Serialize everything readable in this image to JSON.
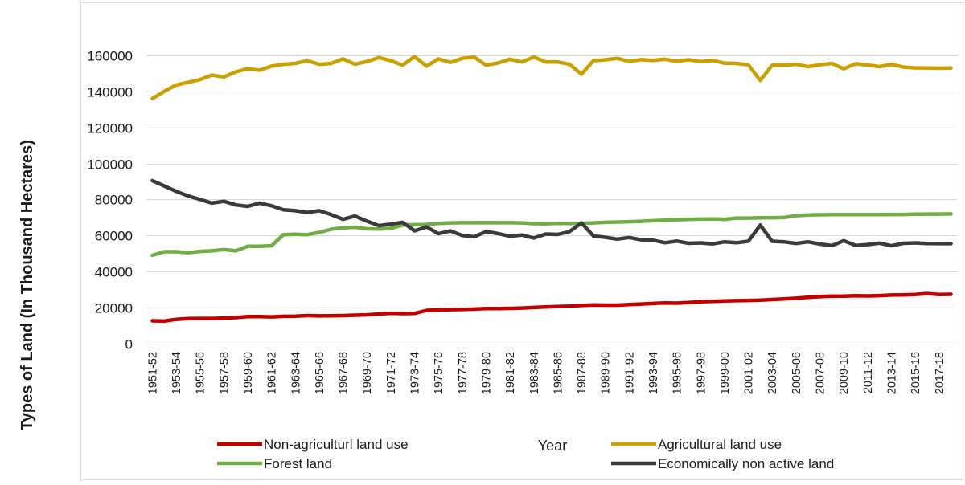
{
  "chart_data": {
    "type": "line",
    "title": "",
    "xlabel": "Year",
    "ylabel": "Types of Land (In Thousand Hectares)",
    "ylim": [
      0,
      180000
    ],
    "yticks": [
      0,
      20000,
      40000,
      60000,
      80000,
      100000,
      120000,
      140000,
      160000
    ],
    "ytick_labels": [
      "0",
      "20000",
      "40000",
      "60000",
      "80000",
      "100000",
      "120000",
      "140000",
      "160000"
    ],
    "grid": "horizontal",
    "legend_position": "bottom",
    "categories": [
      "1951-52",
      "1952-53",
      "1953-54",
      "1954-55",
      "1955-56",
      "1956-57",
      "1957-58",
      "1958-59",
      "1959-60",
      "1960-61",
      "1961-62",
      "1962-63",
      "1963-64",
      "1964-65",
      "1965-66",
      "1966-67",
      "1967-68",
      "1968-69",
      "1969-70",
      "1970-71",
      "1971-72",
      "1972-73",
      "1973-74",
      "1974-75",
      "1975-76",
      "1976-77",
      "1977-78",
      "1978-79",
      "1979-80",
      "1980-81",
      "1981-82",
      "1982-83",
      "1983-84",
      "1984-85",
      "1985-86",
      "1986-87",
      "1987-88",
      "1988-89",
      "1989-90",
      "1990-91",
      "1991-92",
      "1992-93",
      "1993-94",
      "1994-95",
      "1995-96",
      "1996-97",
      "1997-98",
      "1998-99",
      "1999-00",
      "2000-01",
      "2001-02",
      "2002-03",
      "2003-04",
      "2004-05",
      "2005-06",
      "2006-07",
      "2007-08",
      "2008-09",
      "2009-10",
      "2010-11",
      "2011-12",
      "2012-13",
      "2013-14",
      "2014-15",
      "2015-16",
      "2016-17",
      "2017-18",
      "2018-19"
    ],
    "tick_labels": [
      "1951-52",
      "1953-54",
      "1955-56",
      "1957-58",
      "1959-60",
      "1961-62",
      "1963-64",
      "1965-66",
      "1967-68",
      "1969-70",
      "1971-72",
      "1973-74",
      "1975-76",
      "1977-78",
      "1979-80",
      "1981-82",
      "1983-84",
      "1985-86",
      "1987-88",
      "1989-90",
      "1991-92",
      "1993-94",
      "1995-96",
      "1997-98",
      "1999-00",
      "2001-02",
      "2003-04",
      "2005-06",
      "2007-08",
      "2009-10",
      "2011-12",
      "2013-14",
      "2015-16",
      "2017-18"
    ],
    "series": [
      {
        "name": "Non-agriculturl land use",
        "color": "#c00000",
        "values": [
          12700,
          12500,
          13500,
          13900,
          14000,
          14000,
          14200,
          14500,
          15000,
          15000,
          14900,
          15200,
          15300,
          15600,
          15400,
          15500,
          15600,
          15800,
          16000,
          16500,
          16900,
          16700,
          16800,
          18500,
          18700,
          18900,
          19000,
          19200,
          19500,
          19500,
          19600,
          19800,
          20100,
          20400,
          20600,
          20800,
          21200,
          21500,
          21400,
          21400,
          21700,
          22000,
          22300,
          22600,
          22500,
          22800,
          23300,
          23500,
          23700,
          23900,
          24000,
          24200,
          24500,
          24800,
          25200,
          25700,
          26100,
          26400,
          26400,
          26600,
          26500,
          26700,
          27000,
          27100,
          27300,
          27800,
          27300,
          27400
        ]
      },
      {
        "name": "Agricultural land use",
        "color": "#c9a000",
        "values": [
          136000,
          140000,
          143500,
          145000,
          146500,
          149000,
          148000,
          150800,
          152500,
          151700,
          154000,
          155000,
          155500,
          157000,
          155000,
          155500,
          158000,
          155000,
          156500,
          158700,
          157000,
          154500,
          159300,
          154000,
          158000,
          156000,
          158300,
          159000,
          154500,
          155700,
          157800,
          156300,
          159000,
          156300,
          156300,
          155000,
          149500,
          157000,
          157500,
          158300,
          156600,
          157600,
          157200,
          157800,
          156700,
          157500,
          156500,
          157200,
          155600,
          155500,
          154700,
          146000,
          154500,
          154500,
          155000,
          153700,
          154700,
          155500,
          152500,
          155300,
          154600,
          153700,
          154900,
          153500,
          153000,
          153000,
          152800,
          153000
        ]
      },
      {
        "name": "Forest land",
        "color": "#70ad47",
        "values": [
          49000,
          51000,
          51000,
          50500,
          51200,
          51500,
          52200,
          51500,
          54000,
          54000,
          54300,
          60500,
          60700,
          60500,
          61700,
          63500,
          64300,
          64600,
          63700,
          63600,
          64000,
          65800,
          66000,
          66100,
          66700,
          67000,
          67100,
          67100,
          67200,
          67100,
          67100,
          67000,
          66600,
          66500,
          66800,
          66700,
          66800,
          67000,
          67300,
          67500,
          67700,
          67900,
          68200,
          68500,
          68800,
          69000,
          69100,
          69200,
          69000,
          69700,
          69700,
          69800,
          69900,
          70000,
          71000,
          71400,
          71500,
          71600,
          71600,
          71600,
          71600,
          71600,
          71700,
          71700,
          71800,
          71900,
          71900,
          72000
        ]
      },
      {
        "name": "Economically non active land",
        "color": "#3a3a3a",
        "values": [
          90500,
          87500,
          84500,
          82000,
          80000,
          78000,
          79000,
          77000,
          76200,
          78000,
          76500,
          74300,
          73800,
          72800,
          73800,
          71600,
          69000,
          70800,
          68000,
          65500,
          66300,
          67300,
          62600,
          64800,
          61000,
          62600,
          60000,
          59300,
          62200,
          61100,
          59600,
          60300,
          58600,
          60800,
          60600,
          62200,
          67000,
          59800,
          59000,
          58000,
          58900,
          57600,
          57400,
          56000,
          56900,
          55700,
          55900,
          55400,
          56500,
          56000,
          56800,
          65800,
          56800,
          56500,
          55600,
          56500,
          55300,
          54400,
          57100,
          54500,
          55000,
          55800,
          54300,
          55700,
          55900,
          55600,
          55500,
          55500
        ]
      }
    ]
  },
  "legend_layout": [
    [
      "Non-agriculturl land use",
      "Agricultural land use"
    ],
    [
      "Forest land",
      "Economically non active land"
    ]
  ]
}
